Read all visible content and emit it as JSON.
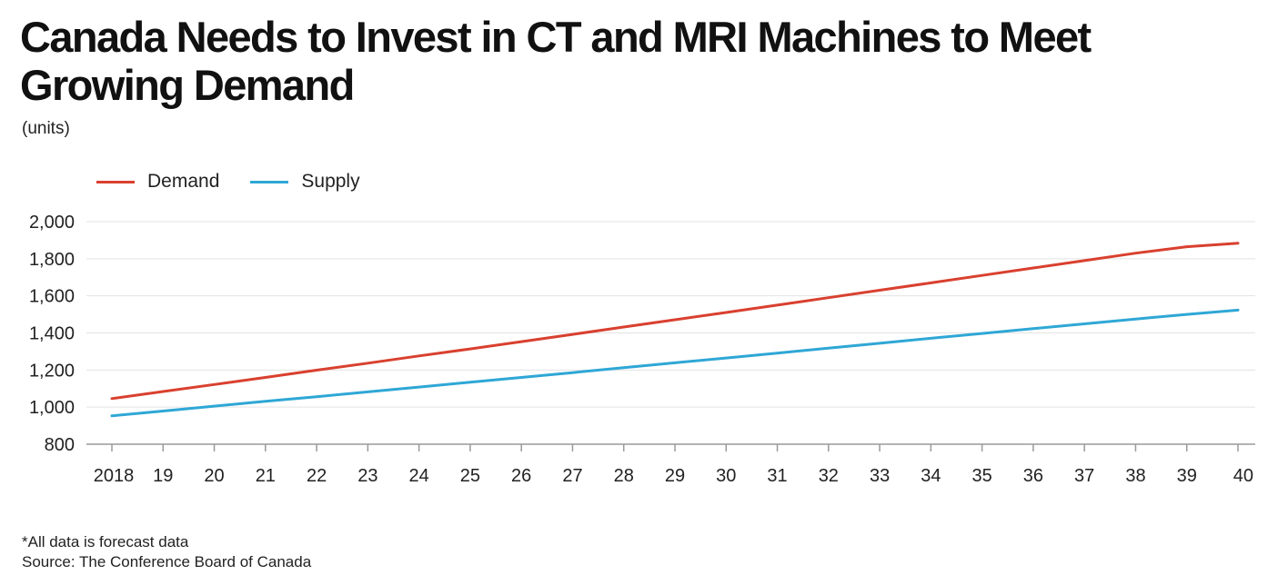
{
  "chart_data": {
    "type": "line",
    "title": "Canada Needs to Invest in CT and MRI Machines to Meet Growing Demand",
    "subtitle": "(units)",
    "categories": [
      "2018",
      "19",
      "20",
      "21",
      "22",
      "23",
      "24",
      "25",
      "26",
      "27",
      "28",
      "29",
      "30",
      "31",
      "32",
      "33",
      "34",
      "35",
      "36",
      "37",
      "38",
      "39",
      "40"
    ],
    "series": [
      {
        "name": "Demand",
        "color": "#d9402f",
        "values": [
          1046,
          1084,
          1122,
          1160,
          1199,
          1237,
          1276,
          1314,
          1353,
          1392,
          1432,
          1471,
          1510,
          1550,
          1590,
          1630,
          1670,
          1710,
          1750,
          1790,
          1830,
          1865,
          1884
        ]
      },
      {
        "name": "Supply",
        "color": "#2fa7d6",
        "values": [
          953,
          979,
          1005,
          1031,
          1056,
          1082,
          1108,
          1134,
          1160,
          1186,
          1213,
          1239,
          1265,
          1291,
          1318,
          1344,
          1371,
          1397,
          1423,
          1449,
          1475,
          1500,
          1523
        ]
      }
    ],
    "y_ticks": [
      "2,000",
      "1,800",
      "1,600",
      "1,400",
      "1,200",
      "1,000",
      "800"
    ],
    "ylim": [
      800,
      2000
    ],
    "grid": true,
    "legend_position": "top-left"
  },
  "footnotes": {
    "note": "*All data is forecast data",
    "source": "Source: The Conference Board of Canada"
  }
}
